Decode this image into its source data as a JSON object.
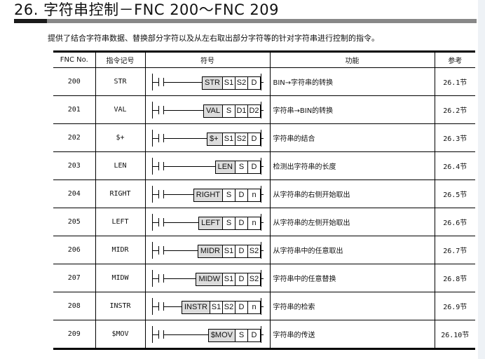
{
  "title": "26. 字符串控制－FNC 200～FNC 209",
  "intro": "提供了结合字符串数据、替换部分字符以及从左右取出部分字符等的针对字符串进行控制的指令。",
  "headers": [
    "FNC No.",
    "指令记号",
    "符号",
    "功能",
    "参考"
  ],
  "rows": [
    {
      "no": "200",
      "mn": "STR",
      "ops": [
        "S1",
        "S2",
        "D"
      ],
      "func": "BIN→字符串的转换",
      "ref": "26.1节"
    },
    {
      "no": "201",
      "mn": "VAL",
      "ops": [
        "S",
        "D1",
        "D2"
      ],
      "func": "字符串→BIN的转换",
      "ref": "26.2节"
    },
    {
      "no": "202",
      "mn": "$+",
      "ops": [
        "S1",
        "S2",
        "D"
      ],
      "func": "字符串的结合",
      "ref": "26.3节"
    },
    {
      "no": "203",
      "mn": "LEN",
      "ops": [
        "S",
        "D"
      ],
      "func": "检测出字符串的长度",
      "ref": "26.4节"
    },
    {
      "no": "204",
      "mn": "RIGHT",
      "ops": [
        "S",
        "D",
        "n"
      ],
      "func": "从字符串的右侧开始取出",
      "ref": "26.5节"
    },
    {
      "no": "205",
      "mn": "LEFT",
      "ops": [
        "S",
        "D",
        "n"
      ],
      "func": "从字符串的左侧开始取出",
      "ref": "26.6节"
    },
    {
      "no": "206",
      "mn": "MIDR",
      "ops": [
        "S1",
        "D",
        "S2"
      ],
      "func": "从字符串中的任意取出",
      "ref": "26.7节"
    },
    {
      "no": "207",
      "mn": "MIDW",
      "ops": [
        "S1",
        "D",
        "S2"
      ],
      "func": "字符串中的任意替换",
      "ref": "26.8节"
    },
    {
      "no": "208",
      "mn": "INSTR",
      "ops": [
        "S1",
        "S2",
        "D",
        "n"
      ],
      "func": "字符串的检索",
      "ref": "26.9节"
    },
    {
      "no": "209",
      "mn": "$MOV",
      "ops": [
        "S",
        "D"
      ],
      "func": "字符串的传送",
      "ref": "26.10节"
    }
  ]
}
